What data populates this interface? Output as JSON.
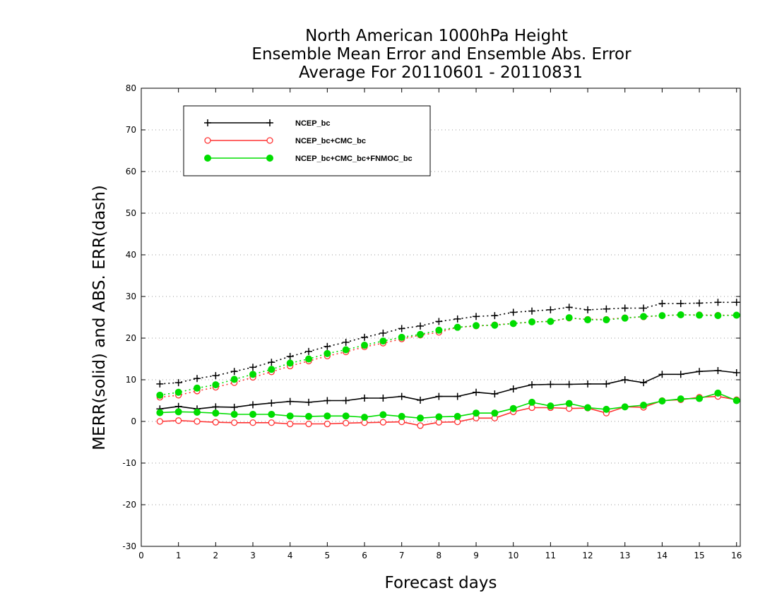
{
  "chart_data": {
    "type": "line",
    "title_lines": [
      "North American 1000hPa Height",
      "Ensemble Mean Error and Ensemble Abs. Error",
      "Average For 20110601 - 20110831"
    ],
    "xlabel": "Forecast days",
    "ylabel": "MERR(solid) and ABS. ERR(dash)",
    "xlim": [
      0,
      16.1
    ],
    "ylim": [
      -30,
      80
    ],
    "x_ticks": [
      0,
      1,
      2,
      3,
      4,
      5,
      6,
      7,
      8,
      9,
      10,
      11,
      12,
      13,
      14,
      15,
      16
    ],
    "y_ticks": [
      -30,
      -20,
      -10,
      0,
      10,
      20,
      30,
      40,
      50,
      60,
      70,
      80
    ],
    "grid": "horizontal-dotted",
    "legend_position": "top-left",
    "x": [
      0.5,
      1.0,
      1.5,
      2.0,
      2.5,
      3.0,
      3.5,
      4.0,
      4.5,
      5.0,
      5.5,
      6.0,
      6.5,
      7.0,
      7.5,
      8.0,
      8.5,
      9.0,
      9.5,
      10.0,
      10.5,
      11.0,
      11.5,
      12.0,
      12.5,
      13.0,
      13.5,
      14.0,
      14.5,
      15.0,
      15.5,
      16.0
    ],
    "series": [
      {
        "name": "NCEP_bc",
        "color": "#000000",
        "marker": "plus",
        "merr": [
          3.0,
          3.6,
          3.0,
          3.5,
          3.4,
          4.0,
          4.4,
          4.8,
          4.6,
          5.0,
          5.0,
          5.6,
          5.6,
          6.0,
          5.1,
          6.0,
          6.0,
          7.0,
          6.6,
          7.8,
          8.8,
          8.9,
          8.9,
          9.0,
          9.0,
          10.0,
          9.3,
          11.3,
          11.3,
          12.0,
          12.2,
          11.7
        ],
        "abs_err": [
          9.0,
          9.3,
          10.3,
          11.0,
          12.0,
          13.0,
          14.2,
          15.6,
          16.8,
          18.0,
          19.0,
          20.2,
          21.2,
          22.3,
          22.9,
          24.0,
          24.6,
          25.2,
          25.4,
          26.2,
          26.5,
          26.8,
          27.4,
          26.8,
          27.0,
          27.2,
          27.2,
          28.3,
          28.3,
          28.4,
          28.6,
          28.6
        ]
      },
      {
        "name": "NCEP_bc+CMC_bc",
        "color": "#ff3333",
        "marker": "open-circle",
        "merr": [
          0.0,
          0.2,
          0.0,
          -0.2,
          -0.3,
          -0.3,
          -0.3,
          -0.6,
          -0.6,
          -0.6,
          -0.4,
          -0.3,
          -0.2,
          -0.1,
          -1.0,
          -0.2,
          -0.1,
          0.8,
          0.8,
          2.3,
          3.3,
          3.3,
          3.1,
          3.2,
          2.0,
          3.5,
          3.4,
          5.0,
          5.2,
          5.8,
          6.0,
          5.2
        ],
        "abs_err": [
          5.8,
          6.3,
          7.3,
          8.2,
          9.3,
          10.6,
          11.9,
          13.3,
          14.5,
          15.7,
          16.7,
          17.9,
          18.8,
          19.8,
          20.7,
          21.4,
          22.6,
          22.9,
          23.2,
          23.5,
          23.9,
          24.0,
          24.8,
          24.5,
          24.5,
          24.9,
          25.1,
          25.4,
          25.6,
          25.6,
          25.5,
          25.5
        ]
      },
      {
        "name": "NCEP_bc+CMC_bc+FNMOC_bc",
        "color": "#00dd00",
        "marker": "filled-circle",
        "merr": [
          2.1,
          2.3,
          2.2,
          2.0,
          1.7,
          1.7,
          1.7,
          1.3,
          1.2,
          1.3,
          1.3,
          1.0,
          1.6,
          1.2,
          0.8,
          1.1,
          1.2,
          2.0,
          2.0,
          3.1,
          4.6,
          3.7,
          4.3,
          3.3,
          2.9,
          3.5,
          3.9,
          4.9,
          5.4,
          5.5,
          6.8,
          5.0
        ],
        "abs_err": [
          6.3,
          7.0,
          8.0,
          8.8,
          10.1,
          11.3,
          12.5,
          14.0,
          15.0,
          16.3,
          17.2,
          18.3,
          19.3,
          20.2,
          20.9,
          21.9,
          22.6,
          23.0,
          23.1,
          23.5,
          23.9,
          24.0,
          24.9,
          24.4,
          24.4,
          24.8,
          25.2,
          25.4,
          25.6,
          25.5,
          25.4,
          25.5
        ]
      }
    ]
  }
}
